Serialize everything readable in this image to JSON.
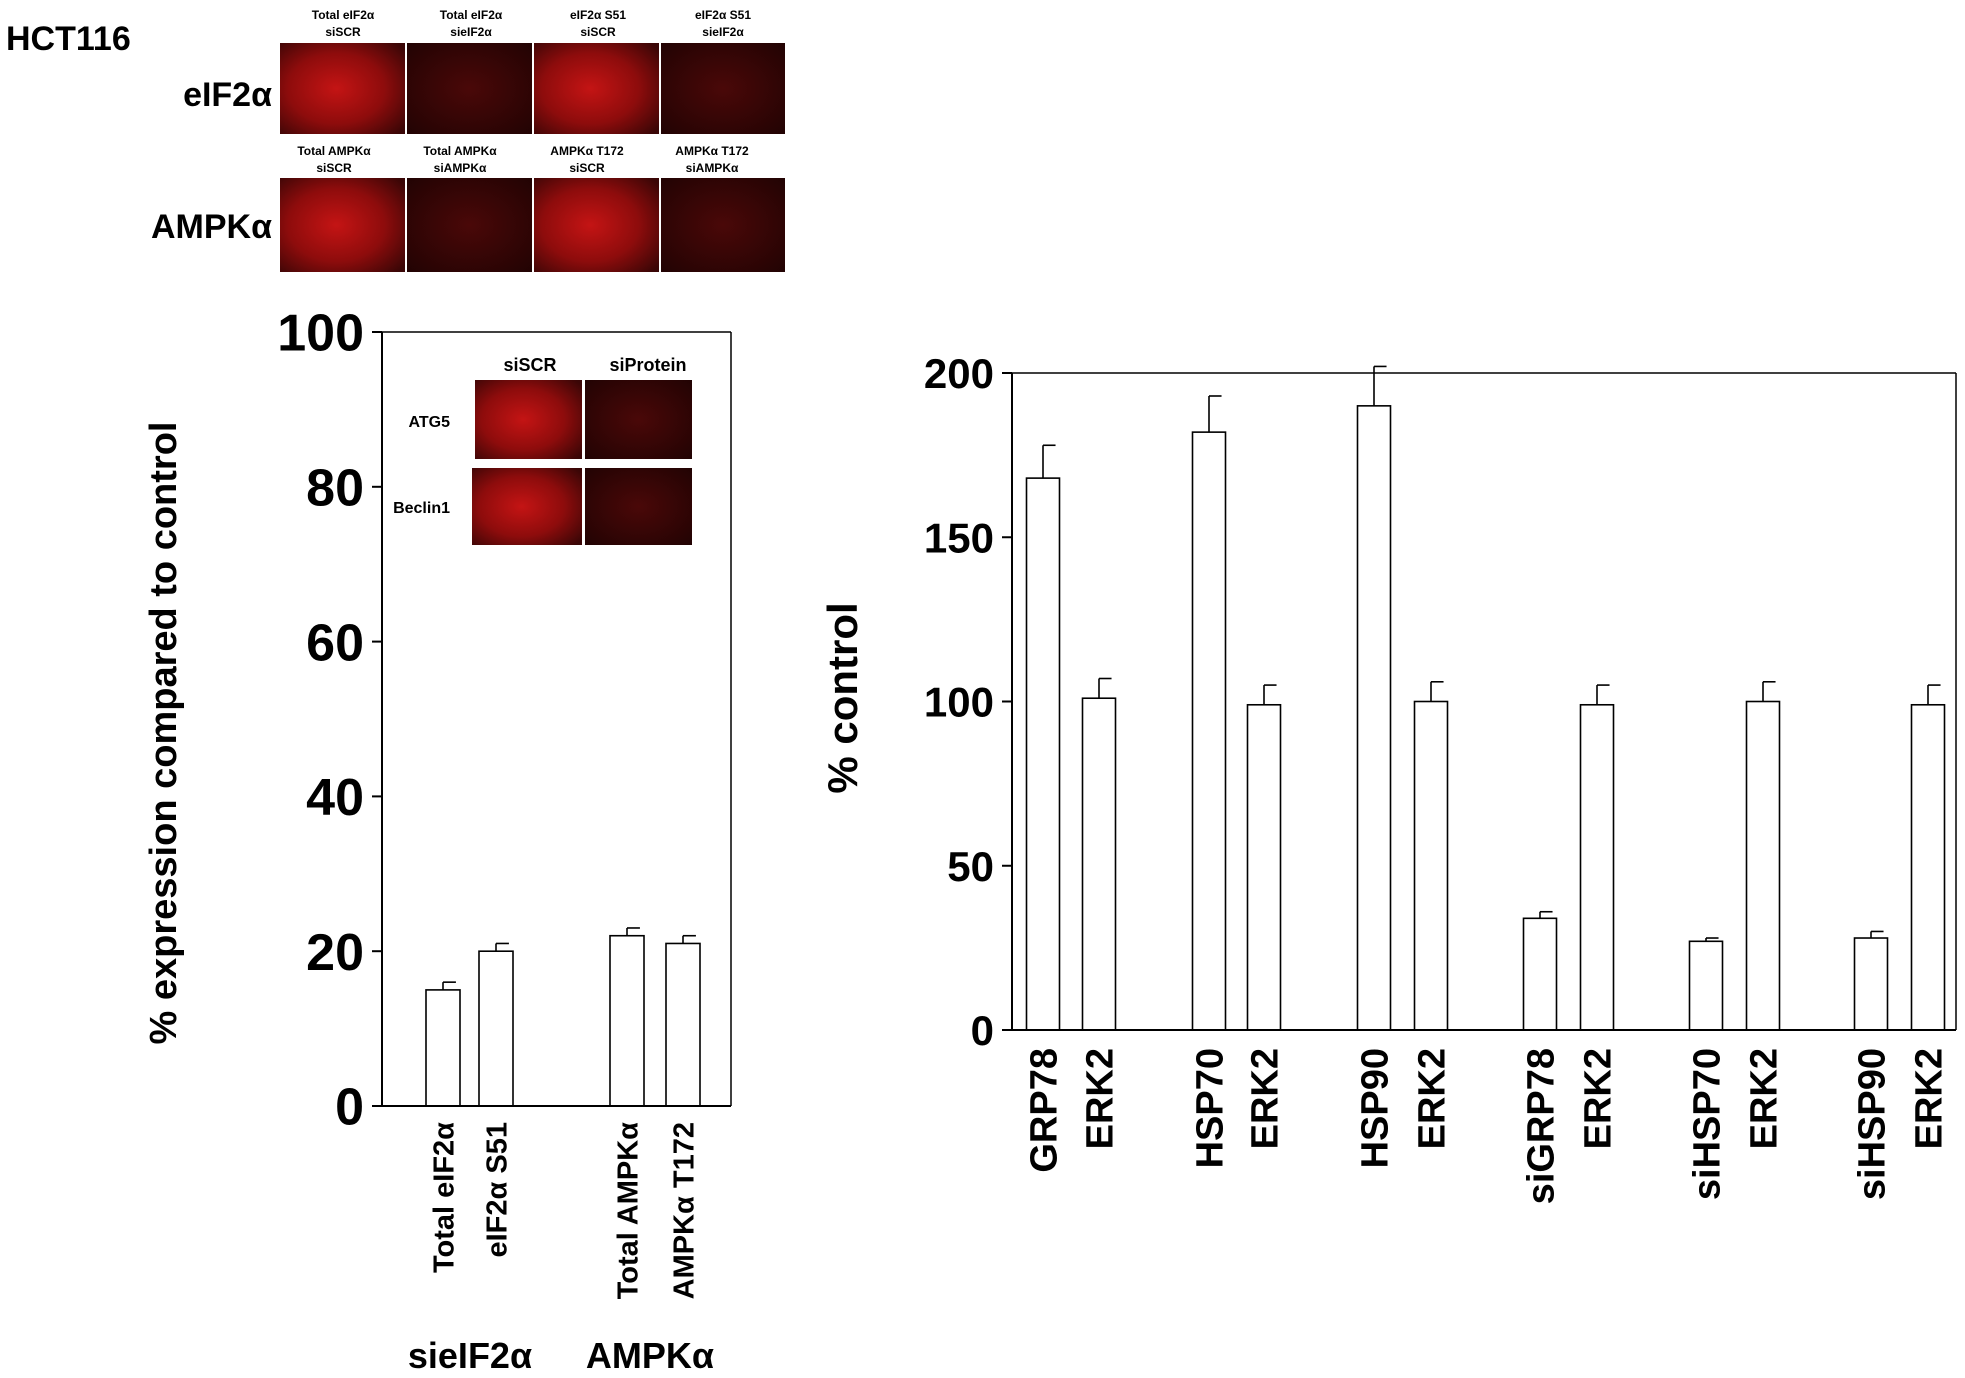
{
  "figure": {
    "cell_line": "HCT116",
    "micrograph_rows": [
      {
        "row_label": "eIF2α",
        "panels": [
          {
            "line1": "Total eIF2α",
            "line2": "siSCR",
            "intensity": "high"
          },
          {
            "line1": "Total eIF2α",
            "line2": "sieIF2α",
            "intensity": "low"
          },
          {
            "line1": "eIF2α S51",
            "line2": "siSCR",
            "intensity": "high"
          },
          {
            "line1": "eIF2α S51",
            "line2": "sieIF2α",
            "intensity": "low"
          }
        ]
      },
      {
        "row_label": "AMPKα",
        "panels": [
          {
            "line1": "Total AMPKα",
            "line2": "siSCR",
            "intensity": "high"
          },
          {
            "line1": "Total AMPKα",
            "line2": "siAMPKα",
            "intensity": "low"
          },
          {
            "line1": "AMPKα T172",
            "line2": "siSCR",
            "intensity": "high"
          },
          {
            "line1": "AMPKα T172",
            "line2": "siAMPKα",
            "intensity": "low"
          }
        ]
      }
    ],
    "inset": {
      "col_labels": [
        "siSCR",
        "siProtein"
      ],
      "rows": [
        {
          "label": "ATG5",
          "intensities": [
            "high",
            "low"
          ]
        },
        {
          "label": "Beclin1",
          "intensities": [
            "high",
            "low"
          ]
        }
      ]
    },
    "colors": {
      "bar_fill": "#ffffff",
      "bar_stroke": "#000000",
      "micrograph_red": "#b01010",
      "micrograph_dark": "#2a0505"
    }
  },
  "chart_data": [
    {
      "type": "bar",
      "title": "",
      "xlabel": "",
      "ylabel": "% expression compared to control",
      "ylim": [
        0,
        100
      ],
      "yticks": [
        0,
        20,
        40,
        60,
        80,
        100
      ],
      "categories": [
        "Total eIF2α",
        "eIF2α S51",
        "Total AMPKα",
        "AMPKα T172"
      ],
      "values": [
        15,
        20,
        22,
        21
      ],
      "errors": [
        1,
        1,
        1,
        1
      ],
      "groups": [
        {
          "label": "sieIF2α",
          "categories": [
            "Total eIF2α",
            "eIF2α S51"
          ]
        },
        {
          "label": "AMPKα",
          "categories": [
            "Total AMPKα",
            "AMPKα T172"
          ]
        }
      ],
      "grid": false
    },
    {
      "type": "bar",
      "title": "",
      "xlabel": "",
      "ylabel": "% control",
      "ylim": [
        0,
        200
      ],
      "yticks": [
        0,
        50,
        100,
        150,
        200
      ],
      "categories": [
        "GRP78",
        "ERK2",
        "HSP70",
        "ERK2",
        "HSP90",
        "ERK2",
        "siGRP78",
        "ERK2",
        "siHSP70",
        "ERK2",
        "siHSP90",
        "ERK2"
      ],
      "values": [
        168,
        101,
        182,
        99,
        190,
        100,
        34,
        99,
        27,
        100,
        28,
        99
      ],
      "errors": [
        10,
        6,
        11,
        6,
        12,
        6,
        2,
        6,
        1,
        6,
        2,
        6
      ],
      "grid": false
    }
  ]
}
